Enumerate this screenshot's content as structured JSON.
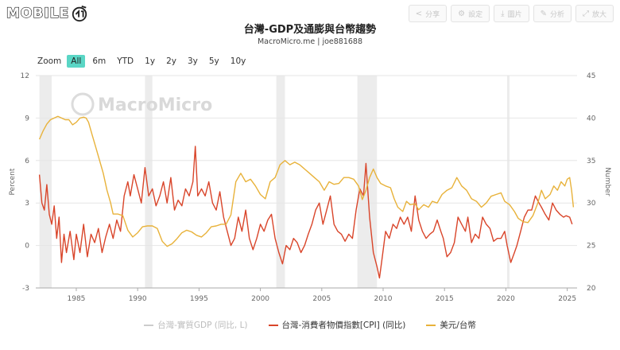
{
  "header": {
    "logo_text": "MOBILE",
    "logo_icon": "mobile01-logo-icon",
    "buttons": [
      {
        "icon": "share-icon",
        "glyph": "<",
        "label": "分享"
      },
      {
        "icon": "gear-icon",
        "glyph": "⚙",
        "label": "設定"
      },
      {
        "icon": "download-icon",
        "glyph": "⤓",
        "label": "圖片"
      },
      {
        "icon": "edit-icon",
        "glyph": "✎",
        "label": "分析"
      },
      {
        "icon": "expand-icon",
        "glyph": "⤢",
        "label": "放大"
      }
    ]
  },
  "chart_data": {
    "type": "line",
    "title": "台灣-GDP及通膨與台幣趨勢",
    "subtitle": "MacroMicro.me | joe881688",
    "watermark": "MacroMicro",
    "zoom": {
      "label": "Zoom",
      "options": [
        "All",
        "6m",
        "YTD",
        "1y",
        "2y",
        "3y",
        "5y",
        "10y"
      ],
      "active": "All"
    },
    "x_range": [
      1981.7,
      2025.8
    ],
    "x_ticks": [
      1985,
      1990,
      1995,
      2000,
      2005,
      2010,
      2015,
      2020,
      2025
    ],
    "y_left": {
      "label": "Percent",
      "range": [
        -3,
        12
      ],
      "ticks": [
        -3,
        0,
        3,
        6,
        9,
        12
      ]
    },
    "y_right": {
      "label": "Number",
      "range": [
        20,
        45
      ],
      "ticks": [
        20,
        25,
        30,
        35,
        40,
        45
      ]
    },
    "grid": true,
    "legend_position": "bottom",
    "recession_bands": [
      [
        1982.0,
        1983.0
      ],
      [
        1990.6,
        1991.2
      ],
      [
        2001.3,
        2002.0
      ],
      [
        2007.9,
        2009.5
      ],
      [
        2020.1,
        2020.3
      ]
    ],
    "series": [
      {
        "name": "台灣-實質GDP (同比, L)",
        "axis": "left",
        "color": "#cccccc",
        "visible": false,
        "points": []
      },
      {
        "name": "台灣-消費者物價指數[CPI] (同比)",
        "axis": "left",
        "color": "#d9452a",
        "visible": true,
        "points": [
          [
            1982.0,
            5.0
          ],
          [
            1982.2,
            3.0
          ],
          [
            1982.4,
            2.5
          ],
          [
            1982.6,
            4.3
          ],
          [
            1982.8,
            2.2
          ],
          [
            1983.0,
            1.5
          ],
          [
            1983.2,
            2.8
          ],
          [
            1983.4,
            0.5
          ],
          [
            1983.6,
            2.0
          ],
          [
            1983.8,
            -1.2
          ],
          [
            1984.0,
            0.8
          ],
          [
            1984.2,
            -0.5
          ],
          [
            1984.5,
            1.0
          ],
          [
            1984.8,
            -1.0
          ],
          [
            1985.0,
            0.8
          ],
          [
            1985.3,
            -0.5
          ],
          [
            1985.6,
            1.5
          ],
          [
            1985.9,
            -0.8
          ],
          [
            1986.2,
            0.8
          ],
          [
            1986.5,
            0.2
          ],
          [
            1986.8,
            1.2
          ],
          [
            1987.1,
            -0.5
          ],
          [
            1987.4,
            0.6
          ],
          [
            1987.7,
            1.5
          ],
          [
            1988.0,
            0.5
          ],
          [
            1988.3,
            1.8
          ],
          [
            1988.6,
            1.0
          ],
          [
            1988.9,
            3.5
          ],
          [
            1989.2,
            4.5
          ],
          [
            1989.4,
            3.5
          ],
          [
            1989.7,
            5.0
          ],
          [
            1990.0,
            4.0
          ],
          [
            1990.3,
            3.0
          ],
          [
            1990.6,
            5.5
          ],
          [
            1990.9,
            3.5
          ],
          [
            1991.2,
            4.0
          ],
          [
            1991.5,
            2.8
          ],
          [
            1991.8,
            3.5
          ],
          [
            1992.1,
            4.5
          ],
          [
            1992.4,
            3.0
          ],
          [
            1992.7,
            4.8
          ],
          [
            1993.0,
            2.5
          ],
          [
            1993.3,
            3.2
          ],
          [
            1993.6,
            2.8
          ],
          [
            1993.9,
            4.0
          ],
          [
            1994.2,
            3.5
          ],
          [
            1994.5,
            4.5
          ],
          [
            1994.7,
            7.0
          ],
          [
            1994.9,
            3.5
          ],
          [
            1995.2,
            4.0
          ],
          [
            1995.5,
            3.5
          ],
          [
            1995.8,
            4.5
          ],
          [
            1996.1,
            3.0
          ],
          [
            1996.4,
            2.5
          ],
          [
            1996.7,
            3.8
          ],
          [
            1997.0,
            2.0
          ],
          [
            1997.3,
            1.0
          ],
          [
            1997.6,
            0.0
          ],
          [
            1997.9,
            0.5
          ],
          [
            1998.2,
            2.0
          ],
          [
            1998.5,
            1.0
          ],
          [
            1998.8,
            2.5
          ],
          [
            1999.1,
            0.5
          ],
          [
            1999.4,
            -0.3
          ],
          [
            1999.7,
            0.5
          ],
          [
            2000.0,
            1.5
          ],
          [
            2000.3,
            1.0
          ],
          [
            2000.6,
            1.8
          ],
          [
            2000.9,
            2.2
          ],
          [
            2001.2,
            0.5
          ],
          [
            2001.5,
            -0.5
          ],
          [
            2001.8,
            -1.3
          ],
          [
            2002.1,
            0.0
          ],
          [
            2002.4,
            -0.3
          ],
          [
            2002.7,
            0.5
          ],
          [
            2003.0,
            0.2
          ],
          [
            2003.3,
            -0.5
          ],
          [
            2003.6,
            0.0
          ],
          [
            2003.9,
            0.8
          ],
          [
            2004.2,
            1.5
          ],
          [
            2004.5,
            2.5
          ],
          [
            2004.8,
            3.0
          ],
          [
            2005.1,
            1.5
          ],
          [
            2005.4,
            2.5
          ],
          [
            2005.7,
            3.5
          ],
          [
            2006.0,
            1.5
          ],
          [
            2006.3,
            1.0
          ],
          [
            2006.6,
            0.8
          ],
          [
            2006.9,
            0.3
          ],
          [
            2007.2,
            0.8
          ],
          [
            2007.5,
            0.5
          ],
          [
            2007.8,
            2.5
          ],
          [
            2008.1,
            4.0
          ],
          [
            2008.4,
            3.5
          ],
          [
            2008.6,
            5.8
          ],
          [
            2008.9,
            2.0
          ],
          [
            2009.2,
            -0.5
          ],
          [
            2009.5,
            -1.5
          ],
          [
            2009.7,
            -2.3
          ],
          [
            2009.9,
            -1.0
          ],
          [
            2010.2,
            1.0
          ],
          [
            2010.5,
            0.5
          ],
          [
            2010.8,
            1.5
          ],
          [
            2011.1,
            1.2
          ],
          [
            2011.4,
            2.0
          ],
          [
            2011.7,
            1.5
          ],
          [
            2012.0,
            2.0
          ],
          [
            2012.3,
            1.0
          ],
          [
            2012.6,
            3.5
          ],
          [
            2012.9,
            1.8
          ],
          [
            2013.2,
            1.0
          ],
          [
            2013.5,
            0.5
          ],
          [
            2013.8,
            0.8
          ],
          [
            2014.1,
            1.0
          ],
          [
            2014.4,
            1.8
          ],
          [
            2014.7,
            1.0
          ],
          [
            2014.9,
            0.5
          ],
          [
            2015.2,
            -0.8
          ],
          [
            2015.5,
            -0.5
          ],
          [
            2015.8,
            0.2
          ],
          [
            2016.1,
            2.0
          ],
          [
            2016.4,
            1.5
          ],
          [
            2016.7,
            1.0
          ],
          [
            2016.9,
            2.0
          ],
          [
            2017.2,
            0.2
          ],
          [
            2017.5,
            0.8
          ],
          [
            2017.8,
            0.5
          ],
          [
            2018.1,
            2.0
          ],
          [
            2018.4,
            1.5
          ],
          [
            2018.7,
            1.2
          ],
          [
            2019.0,
            0.3
          ],
          [
            2019.3,
            0.5
          ],
          [
            2019.6,
            0.5
          ],
          [
            2019.9,
            1.0
          ],
          [
            2020.1,
            0.0
          ],
          [
            2020.4,
            -1.2
          ],
          [
            2020.7,
            -0.5
          ],
          [
            2020.9,
            0.0
          ],
          [
            2021.2,
            1.0
          ],
          [
            2021.5,
            2.0
          ],
          [
            2021.8,
            2.5
          ],
          [
            2022.1,
            2.5
          ],
          [
            2022.4,
            3.5
          ],
          [
            2022.7,
            3.0
          ],
          [
            2022.9,
            2.7
          ],
          [
            2023.2,
            2.2
          ],
          [
            2023.5,
            1.8
          ],
          [
            2023.8,
            3.0
          ],
          [
            2024.1,
            2.5
          ],
          [
            2024.4,
            2.2
          ],
          [
            2024.7,
            2.0
          ],
          [
            2024.9,
            2.1
          ],
          [
            2025.2,
            2.0
          ],
          [
            2025.4,
            1.5
          ]
        ]
      },
      {
        "name": "美元/台幣",
        "axis": "right",
        "color": "#e8b23a",
        "visible": true,
        "points": [
          [
            1982.0,
            37.5
          ],
          [
            1982.3,
            38.5
          ],
          [
            1982.6,
            39.3
          ],
          [
            1982.9,
            39.8
          ],
          [
            1983.2,
            40.0
          ],
          [
            1983.5,
            40.2
          ],
          [
            1983.8,
            40.0
          ],
          [
            1984.1,
            39.8
          ],
          [
            1984.4,
            39.8
          ],
          [
            1984.7,
            39.2
          ],
          [
            1985.0,
            39.5
          ],
          [
            1985.3,
            40.0
          ],
          [
            1985.6,
            40.1
          ],
          [
            1985.8,
            40.0
          ],
          [
            1986.0,
            39.5
          ],
          [
            1986.3,
            38.0
          ],
          [
            1986.6,
            36.5
          ],
          [
            1986.9,
            35.0
          ],
          [
            1987.2,
            33.5
          ],
          [
            1987.5,
            31.5
          ],
          [
            1987.8,
            30.0
          ],
          [
            1988.0,
            28.7
          ],
          [
            1988.4,
            28.7
          ],
          [
            1988.8,
            28.5
          ],
          [
            1989.2,
            26.8
          ],
          [
            1989.6,
            26.0
          ],
          [
            1990.0,
            26.5
          ],
          [
            1990.4,
            27.2
          ],
          [
            1990.8,
            27.3
          ],
          [
            1991.2,
            27.3
          ],
          [
            1991.6,
            27.0
          ],
          [
            1992.0,
            25.5
          ],
          [
            1992.4,
            24.9
          ],
          [
            1992.8,
            25.2
          ],
          [
            1993.2,
            25.8
          ],
          [
            1993.6,
            26.5
          ],
          [
            1994.0,
            26.8
          ],
          [
            1994.4,
            26.6
          ],
          [
            1994.8,
            26.2
          ],
          [
            1995.2,
            26.0
          ],
          [
            1995.6,
            26.5
          ],
          [
            1996.0,
            27.2
          ],
          [
            1996.4,
            27.3
          ],
          [
            1996.8,
            27.5
          ],
          [
            1997.2,
            27.5
          ],
          [
            1997.6,
            28.6
          ],
          [
            1998.0,
            32.5
          ],
          [
            1998.4,
            33.5
          ],
          [
            1998.8,
            32.5
          ],
          [
            1999.2,
            32.8
          ],
          [
            1999.6,
            32.0
          ],
          [
            2000.0,
            31.0
          ],
          [
            2000.4,
            30.5
          ],
          [
            2000.8,
            32.5
          ],
          [
            2001.2,
            33.0
          ],
          [
            2001.6,
            34.5
          ],
          [
            2002.0,
            35.0
          ],
          [
            2002.4,
            34.5
          ],
          [
            2002.8,
            34.8
          ],
          [
            2003.2,
            34.5
          ],
          [
            2003.6,
            34.0
          ],
          [
            2004.0,
            33.5
          ],
          [
            2004.4,
            33.0
          ],
          [
            2004.8,
            32.5
          ],
          [
            2005.2,
            31.5
          ],
          [
            2005.6,
            32.5
          ],
          [
            2006.0,
            32.2
          ],
          [
            2006.4,
            32.3
          ],
          [
            2006.8,
            33.0
          ],
          [
            2007.2,
            33.0
          ],
          [
            2007.6,
            32.8
          ],
          [
            2008.0,
            32.0
          ],
          [
            2008.3,
            30.4
          ],
          [
            2008.6,
            31.5
          ],
          [
            2008.9,
            33.0
          ],
          [
            2009.2,
            34.0
          ],
          [
            2009.5,
            33.0
          ],
          [
            2009.8,
            32.3
          ],
          [
            2010.2,
            32.0
          ],
          [
            2010.6,
            31.8
          ],
          [
            2010.9,
            30.5
          ],
          [
            2011.2,
            29.5
          ],
          [
            2011.6,
            29.0
          ],
          [
            2011.9,
            30.2
          ],
          [
            2012.2,
            29.8
          ],
          [
            2012.6,
            29.9
          ],
          [
            2012.9,
            29.2
          ],
          [
            2013.3,
            29.8
          ],
          [
            2013.7,
            29.5
          ],
          [
            2014.0,
            30.2
          ],
          [
            2014.4,
            30.0
          ],
          [
            2014.8,
            31.0
          ],
          [
            2015.2,
            31.5
          ],
          [
            2015.6,
            31.8
          ],
          [
            2016.0,
            33.0
          ],
          [
            2016.4,
            32.0
          ],
          [
            2016.8,
            31.5
          ],
          [
            2017.2,
            30.5
          ],
          [
            2017.6,
            30.2
          ],
          [
            2018.0,
            29.5
          ],
          [
            2018.4,
            30.0
          ],
          [
            2018.8,
            30.8
          ],
          [
            2019.2,
            31.0
          ],
          [
            2019.6,
            31.2
          ],
          [
            2019.9,
            30.2
          ],
          [
            2020.3,
            29.8
          ],
          [
            2020.7,
            29.0
          ],
          [
            2021.0,
            28.2
          ],
          [
            2021.4,
            27.8
          ],
          [
            2021.8,
            27.7
          ],
          [
            2022.2,
            28.5
          ],
          [
            2022.6,
            30.0
          ],
          [
            2022.9,
            31.5
          ],
          [
            2023.2,
            30.5
          ],
          [
            2023.6,
            31.0
          ],
          [
            2023.9,
            32.0
          ],
          [
            2024.2,
            31.5
          ],
          [
            2024.5,
            32.5
          ],
          [
            2024.8,
            32.0
          ],
          [
            2025.0,
            32.8
          ],
          [
            2025.2,
            33.0
          ],
          [
            2025.35,
            31.5
          ],
          [
            2025.5,
            29.5
          ]
        ]
      }
    ]
  }
}
